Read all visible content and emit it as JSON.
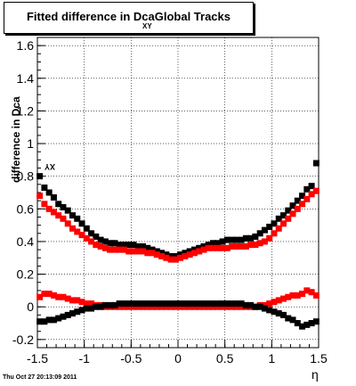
{
  "title": "Fitted difference in Dca",
  "title_sub": "XY",
  "title_suffix": "Global Tracks",
  "ylabel": "difference in Dca",
  "ylabel_sub": "XY",
  "xlabel": "η",
  "footer": "Thu Oct 27 20:13:09 2011",
  "chart_data": {
    "type": "scatter",
    "xlim": [
      -1.5,
      1.5
    ],
    "ylim": [
      -0.25,
      1.65
    ],
    "xticks": [
      "-1.5",
      "-1",
      "-0.5",
      "0",
      "0.5",
      "1",
      "1.5"
    ],
    "xtick_values": [
      -1.5,
      -1,
      -0.5,
      0,
      0.5,
      1,
      1.5
    ],
    "yticks": [
      "-0.2",
      "0",
      "0.2",
      "0.4",
      "0.6",
      "0.8",
      "1",
      "1.2",
      "1.4",
      "1.6"
    ],
    "ytick_values": [
      -0.2,
      0,
      0.2,
      0.4,
      0.6,
      0.8,
      1,
      1.2,
      1.4,
      1.6
    ],
    "grid": true,
    "series": [
      {
        "color": "#000000",
        "x": [
          -1.475,
          -1.425,
          -1.375,
          -1.325,
          -1.275,
          -1.225,
          -1.175,
          -1.125,
          -1.075,
          -1.025,
          -0.975,
          -0.925,
          -0.875,
          -0.825,
          -0.775,
          -0.725,
          -0.675,
          -0.625,
          -0.575,
          -0.525,
          -0.475,
          -0.425,
          -0.375,
          -0.325,
          -0.275,
          -0.225,
          -0.175,
          -0.125,
          -0.075,
          -0.025,
          0.025,
          0.075,
          0.125,
          0.175,
          0.225,
          0.275,
          0.325,
          0.375,
          0.425,
          0.475,
          0.525,
          0.575,
          0.625,
          0.675,
          0.725,
          0.775,
          0.825,
          0.875,
          0.925,
          0.975,
          1.025,
          1.075,
          1.125,
          1.175,
          1.225,
          1.275,
          1.325,
          1.375,
          1.425,
          1.475
        ],
        "y": [
          0.8,
          0.73,
          0.7,
          0.67,
          0.63,
          0.61,
          0.59,
          0.56,
          0.54,
          0.51,
          0.48,
          0.45,
          0.43,
          0.41,
          0.4,
          0.39,
          0.39,
          0.38,
          0.38,
          0.38,
          0.38,
          0.37,
          0.37,
          0.36,
          0.35,
          0.34,
          0.33,
          0.32,
          0.31,
          0.31,
          0.32,
          0.33,
          0.34,
          0.35,
          0.36,
          0.37,
          0.38,
          0.39,
          0.39,
          0.4,
          0.41,
          0.41,
          0.41,
          0.41,
          0.42,
          0.42,
          0.43,
          0.45,
          0.47,
          0.49,
          0.51,
          0.54,
          0.56,
          0.59,
          0.62,
          0.65,
          0.68,
          0.72,
          0.74,
          0.88
        ]
      },
      {
        "color": "#ff0000",
        "x": [
          -1.475,
          -1.425,
          -1.375,
          -1.325,
          -1.275,
          -1.225,
          -1.175,
          -1.125,
          -1.075,
          -1.025,
          -0.975,
          -0.925,
          -0.875,
          -0.825,
          -0.775,
          -0.725,
          -0.675,
          -0.625,
          -0.575,
          -0.525,
          -0.475,
          -0.425,
          -0.375,
          -0.325,
          -0.275,
          -0.225,
          -0.175,
          -0.125,
          -0.075,
          -0.025,
          0.025,
          0.075,
          0.125,
          0.175,
          0.225,
          0.275,
          0.325,
          0.375,
          0.425,
          0.475,
          0.525,
          0.575,
          0.625,
          0.675,
          0.725,
          0.775,
          0.825,
          0.875,
          0.925,
          0.975,
          1.025,
          1.075,
          1.125,
          1.175,
          1.225,
          1.275,
          1.325,
          1.375,
          1.425,
          1.475
        ],
        "y": [
          0.68,
          0.63,
          0.6,
          0.58,
          0.56,
          0.54,
          0.51,
          0.48,
          0.46,
          0.44,
          0.42,
          0.4,
          0.38,
          0.37,
          0.36,
          0.35,
          0.35,
          0.35,
          0.35,
          0.34,
          0.34,
          0.34,
          0.34,
          0.33,
          0.33,
          0.32,
          0.31,
          0.3,
          0.29,
          0.29,
          0.3,
          0.31,
          0.32,
          0.33,
          0.34,
          0.35,
          0.36,
          0.36,
          0.36,
          0.36,
          0.36,
          0.37,
          0.37,
          0.37,
          0.37,
          0.38,
          0.38,
          0.39,
          0.4,
          0.42,
          0.45,
          0.48,
          0.51,
          0.54,
          0.57,
          0.6,
          0.63,
          0.66,
          0.69,
          0.71
        ]
      },
      {
        "color": "#ff0000",
        "x": [
          -1.475,
          -1.425,
          -1.375,
          -1.325,
          -1.275,
          -1.225,
          -1.175,
          -1.125,
          -1.075,
          -1.025,
          -0.975,
          -0.925,
          -0.875,
          -0.825,
          -0.775,
          -0.725,
          -0.675,
          -0.625,
          -0.575,
          -0.525,
          -0.475,
          -0.425,
          -0.375,
          -0.325,
          -0.275,
          -0.225,
          -0.175,
          -0.125,
          -0.075,
          -0.025,
          0.025,
          0.075,
          0.125,
          0.175,
          0.225,
          0.275,
          0.325,
          0.375,
          0.425,
          0.475,
          0.525,
          0.575,
          0.625,
          0.675,
          0.725,
          0.775,
          0.825,
          0.875,
          0.925,
          0.975,
          1.025,
          1.075,
          1.125,
          1.175,
          1.225,
          1.275,
          1.325,
          1.375,
          1.425,
          1.475
        ],
        "y": [
          0.06,
          0.08,
          0.08,
          0.07,
          0.06,
          0.06,
          0.05,
          0.04,
          0.04,
          0.03,
          0.02,
          0.02,
          0.01,
          0.01,
          0.0,
          0.0,
          0.0,
          0.0,
          0.0,
          0.0,
          0.0,
          0.0,
          0.0,
          0.0,
          0.0,
          0.0,
          0.0,
          0.0,
          0.0,
          0.0,
          0.0,
          0.0,
          0.0,
          0.0,
          0.0,
          0.0,
          0.0,
          0.0,
          0.0,
          0.0,
          0.0,
          0.0,
          0.0,
          0.0,
          0.0,
          0.0,
          0.0,
          0.01,
          0.01,
          0.02,
          0.03,
          0.04,
          0.05,
          0.06,
          0.07,
          0.07,
          0.08,
          0.1,
          0.09,
          0.07
        ]
      },
      {
        "color": "#000000",
        "x": [
          -1.475,
          -1.425,
          -1.375,
          -1.325,
          -1.275,
          -1.225,
          -1.175,
          -1.125,
          -1.075,
          -1.025,
          -0.975,
          -0.925,
          -0.875,
          -0.825,
          -0.775,
          -0.725,
          -0.675,
          -0.625,
          -0.575,
          -0.525,
          -0.475,
          -0.425,
          -0.375,
          -0.325,
          -0.275,
          -0.225,
          -0.175,
          -0.125,
          -0.075,
          -0.025,
          0.025,
          0.075,
          0.125,
          0.175,
          0.225,
          0.275,
          0.325,
          0.375,
          0.425,
          0.475,
          0.525,
          0.575,
          0.625,
          0.675,
          0.725,
          0.775,
          0.825,
          0.875,
          0.925,
          0.975,
          1.025,
          1.075,
          1.125,
          1.175,
          1.225,
          1.275,
          1.325,
          1.375,
          1.425,
          1.475
        ],
        "y": [
          -0.09,
          -0.09,
          -0.08,
          -0.08,
          -0.07,
          -0.06,
          -0.05,
          -0.04,
          -0.03,
          -0.02,
          -0.01,
          -0.01,
          0.0,
          0.0,
          0.01,
          0.01,
          0.01,
          0.02,
          0.02,
          0.02,
          0.02,
          0.02,
          0.02,
          0.02,
          0.02,
          0.02,
          0.02,
          0.02,
          0.02,
          0.02,
          0.02,
          0.02,
          0.02,
          0.02,
          0.02,
          0.02,
          0.02,
          0.02,
          0.02,
          0.02,
          0.02,
          0.02,
          0.02,
          0.02,
          0.01,
          0.01,
          0.0,
          0.0,
          -0.01,
          -0.02,
          -0.03,
          -0.04,
          -0.05,
          -0.07,
          -0.08,
          -0.1,
          -0.12,
          -0.11,
          -0.1,
          -0.09
        ]
      }
    ]
  }
}
